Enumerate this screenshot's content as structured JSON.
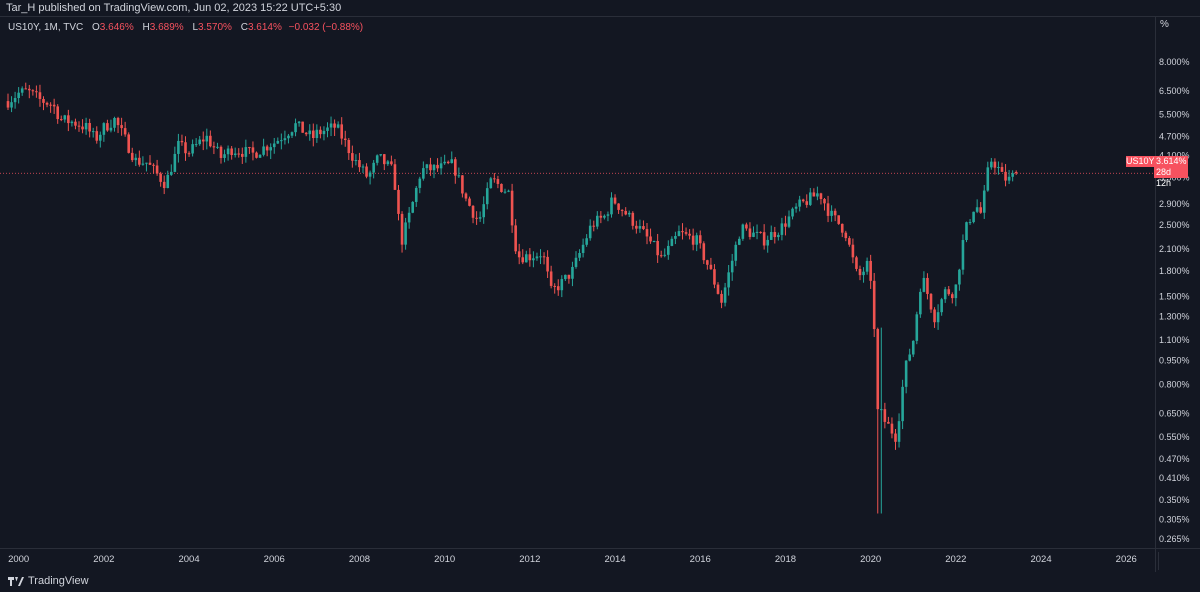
{
  "header": {
    "published": "Tar_H published on TradingView.com, Jun 02, 2023 15:22 UTC+5:30"
  },
  "legend": {
    "symbol": "US10Y, 1M, TVC",
    "o_key": "O",
    "o_val": "3.646%",
    "h_key": "H",
    "h_val": "3.689%",
    "l_key": "L",
    "l_val": "3.570%",
    "c_key": "C",
    "c_val": "3.614%",
    "change": "−0.032 (−0.88%)"
  },
  "price_tag": {
    "symbol": "US10Y",
    "value": "3.614%",
    "countdown": "28d 12h"
  },
  "axis_unit": "%",
  "footer": {
    "brand": "TradingView"
  },
  "colors": {
    "background": "#131722",
    "up": "#26a69a",
    "down": "#ef5350",
    "price_line": "#f7525f",
    "text": "#d1d4dc"
  },
  "chart_data": {
    "type": "candlestick",
    "scale": "log",
    "y_ticks": [
      "8.000%",
      "6.500%",
      "5.500%",
      "4.700%",
      "4.100%",
      "3.500%",
      "2.900%",
      "2.500%",
      "2.100%",
      "1.800%",
      "1.500%",
      "1.300%",
      "1.100%",
      "0.950%",
      "0.800%",
      "0.650%",
      "0.550%",
      "0.470%",
      "0.410%",
      "0.350%",
      "0.305%",
      "0.265%"
    ],
    "y_tick_values": [
      8.0,
      6.5,
      5.5,
      4.7,
      4.1,
      3.5,
      2.9,
      2.5,
      2.1,
      1.8,
      1.5,
      1.3,
      1.1,
      0.95,
      0.8,
      0.65,
      0.55,
      0.47,
      0.41,
      0.35,
      0.305,
      0.265
    ],
    "x_ticks": [
      "2000",
      "2002",
      "2004",
      "2006",
      "2008",
      "2010",
      "2012",
      "2014",
      "2016",
      "2018",
      "2020",
      "2022",
      "2024",
      "2026"
    ],
    "x_tick_years": [
      2000,
      2002,
      2004,
      2006,
      2008,
      2010,
      2012,
      2014,
      2016,
      2018,
      2020,
      2022,
      2024,
      2026
    ],
    "last_price": 3.614,
    "anchors": [
      [
        1999.75,
        6.05
      ],
      [
        2000.0,
        6.4
      ],
      [
        2000.2,
        6.5
      ],
      [
        2000.5,
        6.1
      ],
      [
        2000.8,
        5.9
      ],
      [
        2001.0,
        5.3
      ],
      [
        2001.3,
        5.2
      ],
      [
        2001.6,
        5.0
      ],
      [
        2001.8,
        4.6
      ],
      [
        2002.0,
        5.0
      ],
      [
        2002.25,
        5.3
      ],
      [
        2002.5,
        4.6
      ],
      [
        2002.75,
        3.95
      ],
      [
        2003.0,
        3.9
      ],
      [
        2003.45,
        3.35
      ],
      [
        2003.75,
        4.4
      ],
      [
        2004.0,
        4.2
      ],
      [
        2004.4,
        4.7
      ],
      [
        2004.75,
        4.05
      ],
      [
        2005.0,
        4.3
      ],
      [
        2005.5,
        4.15
      ],
      [
        2005.9,
        4.45
      ],
      [
        2006.0,
        4.5
      ],
      [
        2006.5,
        5.1
      ],
      [
        2006.9,
        4.65
      ],
      [
        2007.0,
        4.8
      ],
      [
        2007.45,
        5.05
      ],
      [
        2007.9,
        3.95
      ],
      [
        2008.2,
        3.5
      ],
      [
        2008.45,
        4.05
      ],
      [
        2008.8,
        3.65
      ],
      [
        2008.98,
        2.2
      ],
      [
        2009.2,
        2.75
      ],
      [
        2009.45,
        3.7
      ],
      [
        2009.9,
        3.75
      ],
      [
        2010.2,
        3.85
      ],
      [
        2010.5,
        3.0
      ],
      [
        2010.8,
        2.55
      ],
      [
        2011.1,
        3.45
      ],
      [
        2011.5,
        3.15
      ],
      [
        2011.7,
        2.0
      ],
      [
        2012.0,
        2.0
      ],
      [
        2012.3,
        2.05
      ],
      [
        2012.5,
        1.55
      ],
      [
        2012.75,
        1.65
      ],
      [
        2013.0,
        1.8
      ],
      [
        2013.45,
        2.5
      ],
      [
        2013.75,
        2.65
      ],
      [
        2013.95,
        3.0
      ],
      [
        2014.5,
        2.5
      ],
      [
        2014.9,
        2.15
      ],
      [
        2015.1,
        1.95
      ],
      [
        2015.5,
        2.35
      ],
      [
        2015.9,
        2.25
      ],
      [
        2016.2,
        1.85
      ],
      [
        2016.5,
        1.45
      ],
      [
        2016.95,
        2.45
      ],
      [
        2017.5,
        2.25
      ],
      [
        2017.9,
        2.45
      ],
      [
        2018.3,
        2.85
      ],
      [
        2018.8,
        3.15
      ],
      [
        2019.05,
        2.7
      ],
      [
        2019.4,
        2.4
      ],
      [
        2019.7,
        1.7
      ],
      [
        2019.95,
        1.9
      ],
      [
        2020.1,
        1.15
      ],
      [
        2020.2,
        0.65
      ],
      [
        2020.6,
        0.55
      ],
      [
        2020.8,
        0.88
      ],
      [
        2021.0,
        1.1
      ],
      [
        2021.2,
        1.75
      ],
      [
        2021.5,
        1.3
      ],
      [
        2021.75,
        1.55
      ],
      [
        2021.98,
        1.55
      ],
      [
        2022.2,
        2.35
      ],
      [
        2022.45,
        2.9
      ],
      [
        2022.6,
        2.7
      ],
      [
        2022.8,
        4.0
      ],
      [
        2022.95,
        3.85
      ],
      [
        2023.1,
        3.5
      ],
      [
        2023.25,
        3.45
      ],
      [
        2023.42,
        3.61
      ]
    ]
  }
}
